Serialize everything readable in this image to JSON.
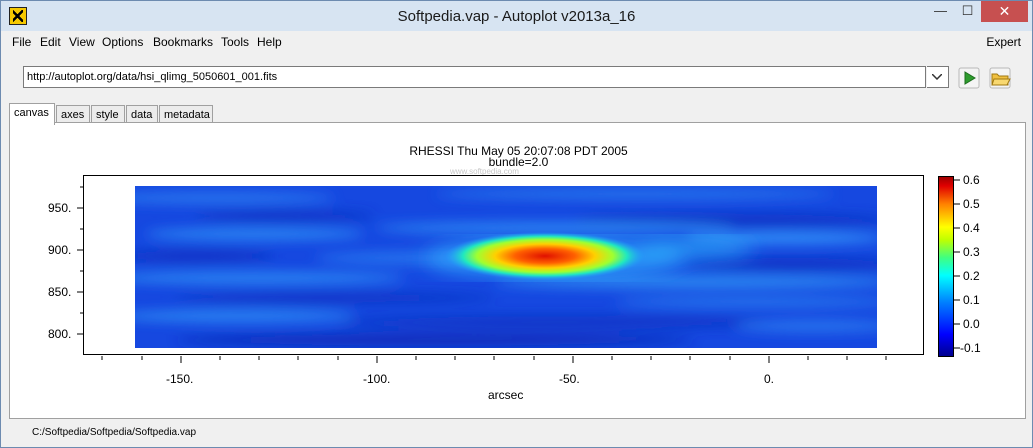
{
  "window": {
    "title": "Softpedia.vap - Autoplot v2013a_16",
    "minimize": "—",
    "maximize": "☐",
    "close": "✕"
  },
  "menu": {
    "items": [
      "File",
      "Edit",
      "View",
      "Options",
      "Bookmarks",
      "Tools",
      "Help"
    ],
    "expert": "Expert"
  },
  "address": {
    "url": "http://autoplot.org/data/hsi_qlimg_5050601_001.fits"
  },
  "tabs": [
    "canvas",
    "axes",
    "style",
    "data",
    "metadata"
  ],
  "watermark": "www.softpedia.com",
  "chart_data": {
    "type": "heatmap",
    "title": "RHESSI Thu May 05 20:07:08 PDT 2005",
    "subtitle": "bundle=2.0",
    "xlabel": "arcsec",
    "ylabel": "",
    "xlim": [
      -170,
      25
    ],
    "ylim": [
      780,
      980
    ],
    "x_ticks": [
      "-150.",
      "-100.",
      "-50.",
      "0."
    ],
    "y_ticks": [
      "950.",
      "900.",
      "850.",
      "800."
    ],
    "colorbar": {
      "range": [
        -0.1,
        0.6
      ],
      "ticks": [
        "0.6",
        "0.5",
        "0.4",
        "0.3",
        "0.2",
        "0.1",
        "0.0",
        "-0.1"
      ]
    },
    "peak": {
      "x": -60,
      "y": 895,
      "value": 0.6
    }
  },
  "status": {
    "path": "C:/Softpedia/Softpedia/Softpedia.vap"
  }
}
